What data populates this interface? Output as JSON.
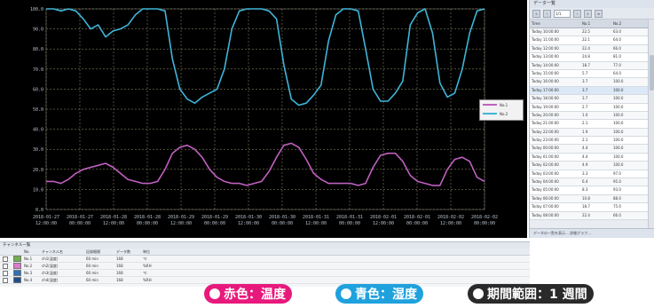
{
  "chart_data": {
    "type": "line",
    "title": "",
    "xlabel": "",
    "ylabel": "",
    "ylim": [
      0,
      100
    ],
    "grid": true,
    "y_ticks": [
      "100.0",
      "90.0",
      "80.0",
      "70.0",
      "60.0",
      "50.0",
      "40.0",
      "30.0",
      "20.0",
      "10.0",
      "0.0"
    ],
    "x_ticks": [
      [
        "2018-01-27",
        "12:00:00"
      ],
      [
        "2018-01-27",
        "00:00:00"
      ],
      [
        "2018-01-28",
        "12:00:00"
      ],
      [
        "2018-01-28",
        "00:00:00"
      ],
      [
        "2018-01-29",
        "12:00:00"
      ],
      [
        "2018-01-29",
        "00:00:00"
      ],
      [
        "2018-01-30",
        "12:00:00"
      ],
      [
        "2018-01-30",
        "00:00:00"
      ],
      [
        "2018-01-31",
        "12:00:00"
      ],
      [
        "2018-01-31",
        "00:00:00"
      ],
      [
        "2018-02-01",
        "12:00:00"
      ],
      [
        "2018-02-01",
        "00:00:00"
      ],
      [
        "2018-02-02",
        "12:00:00"
      ],
      [
        "2018-02-02",
        "00:00:00"
      ]
    ],
    "x_count": 60,
    "series": [
      {
        "name": "No.1",
        "color": "#c060c0",
        "values": [
          14,
          14,
          13,
          15,
          18,
          20,
          21,
          22,
          23,
          21,
          18,
          15,
          14,
          13,
          13,
          14,
          20,
          28,
          31,
          32,
          30,
          26,
          20,
          16,
          14,
          13,
          13,
          12,
          13,
          14,
          19,
          26,
          32,
          33,
          31,
          25,
          18,
          15,
          13,
          13,
          13,
          13,
          12,
          13,
          21,
          27,
          28,
          28,
          24,
          17,
          14,
          13,
          12,
          12,
          20,
          25,
          26,
          24,
          16,
          14
        ]
      },
      {
        "name": "No.2",
        "color": "#3fb5d8",
        "values": [
          100,
          100,
          99,
          100,
          99,
          95,
          90,
          92,
          86,
          89,
          90,
          92,
          97,
          100,
          100,
          100,
          99,
          75,
          60,
          55,
          53,
          56,
          58,
          60,
          70,
          90,
          99,
          100,
          100,
          100,
          99,
          95,
          72,
          55,
          52,
          53,
          57,
          62,
          84,
          97,
          100,
          100,
          99,
          80,
          60,
          54,
          54,
          58,
          64,
          92,
          98,
          100,
          88,
          63,
          56,
          58,
          70,
          88,
          99,
          100
        ]
      }
    ]
  },
  "legend": [
    "No.1",
    "No.2"
  ],
  "data_panel": {
    "title": "データ一覧",
    "page_field": "1/1",
    "columns": [
      "Time",
      "No.1",
      "No.2"
    ],
    "rows": [
      [
        "Today 10:00:00",
        "22.5",
        "63.0"
      ],
      [
        "Today 11:00:00",
        "22.1",
        "64.0"
      ],
      [
        "Today 12:00:00",
        "22.4",
        "66.0"
      ],
      [
        "Today 13:00:00",
        "24.8",
        "81.0"
      ],
      [
        "Today 14:00:00",
        "18.7",
        "77.0"
      ],
      [
        "Today 15:00:00",
        "5.7",
        "64.0"
      ],
      [
        "Today 16:00:00",
        "3.7",
        "100.0"
      ],
      [
        "Today 17:00:00",
        "3.7",
        "100.0"
      ],
      [
        "Today 18:00:00",
        "3.7",
        "100.0"
      ],
      [
        "Today 19:00:00",
        "2.7",
        "100.0"
      ],
      [
        "Today 20:00:00",
        "1.0",
        "100.0"
      ],
      [
        "Today 21:00:00",
        "2.1",
        "100.0"
      ],
      [
        "Today 22:00:00",
        "1.9",
        "100.0"
      ],
      [
        "Today 23:00:00",
        "2.1",
        "100.0"
      ],
      [
        "Today 00:00:00",
        "4.4",
        "100.0"
      ],
      [
        "Today 01:00:00",
        "4.4",
        "100.0"
      ],
      [
        "Today 02:00:00",
        "4.9",
        "100.0"
      ],
      [
        "Today 03:00:00",
        "3.3",
        "97.0"
      ],
      [
        "Today 04:00:00",
        "6.4",
        "95.0"
      ],
      [
        "Today 05:00:00",
        "8.3",
        "93.0"
      ],
      [
        "Today 06:00:00",
        "10.8",
        "88.0"
      ],
      [
        "Today 07:00:00",
        "18.7",
        "75.0"
      ],
      [
        "Today 08:00:00",
        "22.4",
        "66.0"
      ]
    ],
    "footer": "データの一覧を表示... 詳細グラフ..."
  },
  "channel_panel": {
    "title": "チャンネル一覧",
    "columns": [
      "No.",
      "チャンネル名",
      "記録間隔",
      "データ数",
      "単位"
    ],
    "rows": [
      {
        "no": "No.1",
        "name": "ch1(温度)",
        "interval": "60 min",
        "count": "168",
        "unit": "℃",
        "color": "#6fb24a"
      },
      {
        "no": "No.2",
        "name": "ch2(湿度)",
        "interval": "60 min",
        "count": "168",
        "unit": "%RH",
        "color": "#e07ad0"
      },
      {
        "no": "No.3",
        "name": "ch3(温度)",
        "interval": "60 min",
        "count": "168",
        "unit": "℃",
        "color": "#2f6fb8"
      },
      {
        "no": "No.4",
        "name": "ch4(湿度)",
        "interval": "60 min",
        "count": "168",
        "unit": "%RH",
        "color": "#1d4e90"
      }
    ]
  },
  "badges": [
    {
      "text": "赤色：温度",
      "color": "#e8197c"
    },
    {
      "text": "青色：湿度",
      "color": "#1fa1dd"
    },
    {
      "text": "期間範囲：1 週間",
      "color": "#2a2a2a"
    }
  ]
}
